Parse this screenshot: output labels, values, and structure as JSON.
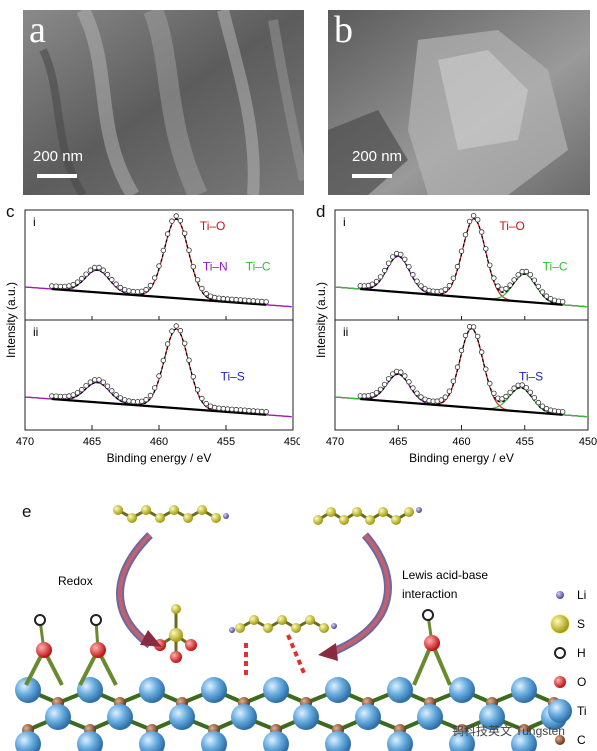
{
  "panel_a": {
    "letter": "a",
    "scale": "200 nm"
  },
  "panel_b": {
    "letter": "b",
    "scale": "200 nm"
  },
  "panel_c": {
    "letter": "c"
  },
  "panel_d": {
    "letter": "d"
  },
  "panel_e": {
    "letter": "e"
  },
  "chart_data": [
    {
      "type": "line",
      "panel": "c",
      "xlabel": "Binding energy / eV",
      "ylabel": "Intensity (a.u.)",
      "xlim": [
        470,
        450
      ],
      "xticks": [
        "470",
        "465",
        "460",
        "455",
        "450"
      ],
      "subplots": [
        {
          "label": "i",
          "annotations": [
            "Ti–O",
            "Ti–N",
            "Ti–C"
          ],
          "peaks": [
            {
              "center": 458.7,
              "height": 1.0
            },
            {
              "center": 464.6,
              "height": 0.28
            }
          ]
        },
        {
          "label": "ii",
          "annotations": [
            "Ti–S"
          ],
          "peaks": [
            {
              "center": 458.7,
              "height": 1.0
            },
            {
              "center": 464.6,
              "height": 0.25
            }
          ]
        }
      ]
    },
    {
      "type": "line",
      "panel": "d",
      "xlabel": "Binding energy / eV",
      "ylabel": "Intensity (a.u.)",
      "xlim": [
        470,
        450
      ],
      "xticks": [
        "470",
        "465",
        "460",
        "455",
        "450"
      ],
      "subplots": [
        {
          "label": "i",
          "annotations": [
            "Ti–O",
            "Ti–C"
          ],
          "peaks": [
            {
              "center": 459.0,
              "height": 1.0
            },
            {
              "center": 465.0,
              "height": 0.45
            },
            {
              "center": 455.0,
              "height": 0.35
            }
          ]
        },
        {
          "label": "ii",
          "annotations": [
            "Ti–S"
          ],
          "peaks": [
            {
              "center": 459.2,
              "height": 1.0
            },
            {
              "center": 465.0,
              "height": 0.35
            },
            {
              "center": 455.3,
              "height": 0.3
            }
          ]
        }
      ]
    }
  ],
  "scheme": {
    "redox_label": "Redox",
    "lewis_label_line1": "Lewis acid-base",
    "lewis_label_line2": "interaction",
    "legend": [
      {
        "symbol": "Li",
        "color": "#6a6aa8"
      },
      {
        "symbol": "S",
        "color": "#e8e020"
      },
      {
        "symbol": "H",
        "color": "#ffffff"
      },
      {
        "symbol": "O",
        "color": "#e02020"
      },
      {
        "symbol": "Ti",
        "color": "#5aa0d8"
      },
      {
        "symbol": "C",
        "color": "#8a4a2a"
      }
    ],
    "watermark": "钨科技英文 Tungsten"
  }
}
